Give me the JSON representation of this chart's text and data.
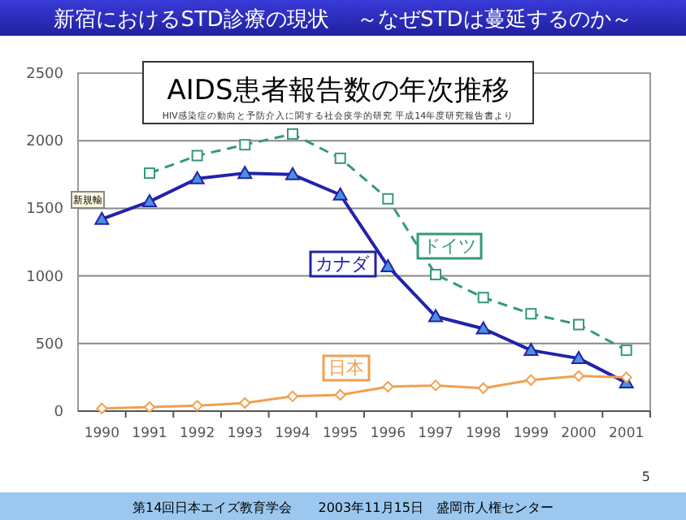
{
  "chart_data": {
    "type": "line",
    "title": "新宿におけるSTD診療の現状　 ～なぜSTDは蔓延するのか～",
    "subtitle": "AIDS患者報告数の年次推移",
    "categories": [
      "1990",
      "1991",
      "1992",
      "1993",
      "1994",
      "1995",
      "1996",
      "1997",
      "1998",
      "1999",
      "2000",
      "2001"
    ],
    "series": [
      {
        "name": "カナダ",
        "color": "#2222aa",
        "marker": "triangle",
        "line_style": "solid",
        "values": [
          1420,
          1550,
          1720,
          1760,
          1750,
          1600,
          1070,
          700,
          610,
          450,
          390,
          210
        ]
      },
      {
        "name": "ドイツ",
        "color": "#339977",
        "marker": "square",
        "line_style": "dashed",
        "values": [
          null,
          1760,
          1890,
          1970,
          2050,
          1870,
          1570,
          1010,
          840,
          720,
          640,
          450
        ]
      },
      {
        "name": "日本",
        "color": "#f0a050",
        "marker": "diamond",
        "line_style": "solid",
        "values": [
          20,
          30,
          40,
          60,
          110,
          120,
          180,
          190,
          170,
          230,
          260,
          250
        ]
      }
    ],
    "ylim": [
      0,
      2500
    ],
    "yticks": [
      0,
      500,
      1000,
      1500,
      2000,
      2500
    ],
    "grid": "y",
    "legend": false,
    "annotations": [
      "HIV感染症の動向と予防介入に関する社会疫学的研究 平成14年度研究報告書より",
      "新規輸",
      "5",
      "第14回日本エイズ教育学会　　2003年11月15日　盛岡市人権センター"
    ]
  }
}
